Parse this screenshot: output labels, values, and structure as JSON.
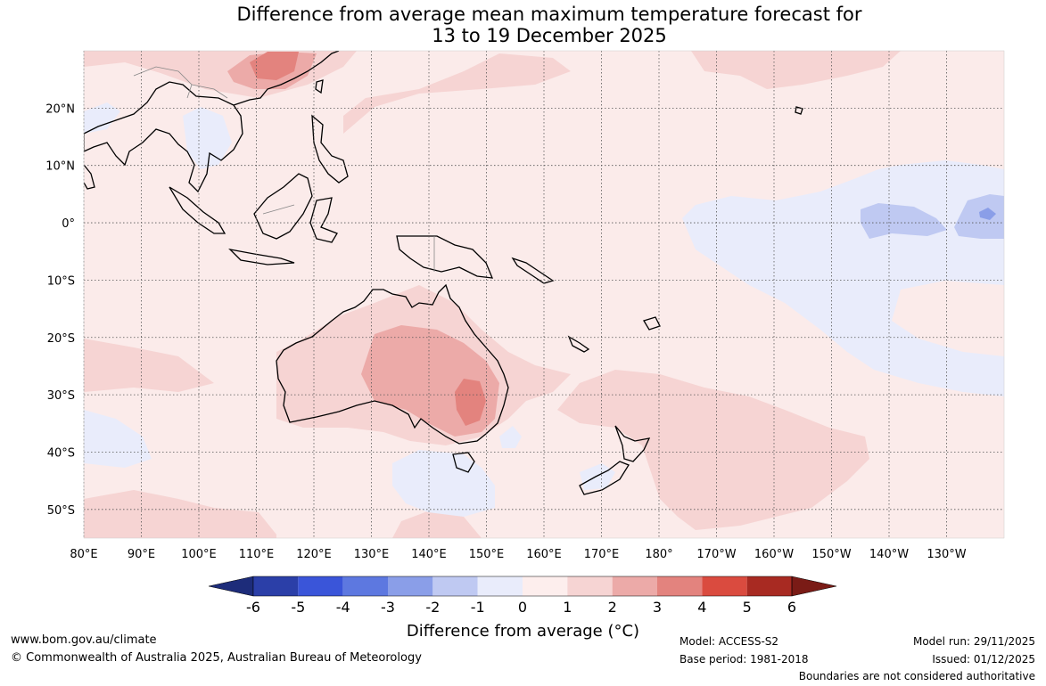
{
  "title": {
    "line1": "Difference from average mean maximum temperature forecast for",
    "line2": "13 to 19 December 2025"
  },
  "axes": {
    "lon_labels": [
      "80°E",
      "90°E",
      "100°E",
      "110°E",
      "120°E",
      "130°E",
      "140°E",
      "150°E",
      "160°E",
      "170°E",
      "180°",
      "170°W",
      "160°W",
      "150°W",
      "140°W",
      "130°W"
    ],
    "lon_values": [
      80,
      90,
      100,
      110,
      120,
      130,
      140,
      150,
      160,
      170,
      180,
      190,
      200,
      210,
      220,
      230
    ],
    "lat_labels": [
      "20°N",
      "10°N",
      "0°",
      "10°S",
      "20°S",
      "30°S",
      "40°S",
      "50°S"
    ],
    "lat_values": [
      20,
      10,
      0,
      -10,
      -20,
      -30,
      -40,
      -50
    ],
    "lon_range": [
      80,
      240
    ],
    "lat_range": [
      -55,
      30
    ]
  },
  "colorbar": {
    "ticks": [
      "-6",
      "-5",
      "-4",
      "-3",
      "-2",
      "-1",
      "0",
      "1",
      "2",
      "3",
      "4",
      "5",
      "6"
    ],
    "colors": [
      "#2b3fa8",
      "#3a55d9",
      "#5d78e0",
      "#8a9ee8",
      "#bfc9f2",
      "#e9ecfb",
      "#fdeeed",
      "#f6d4d3",
      "#ecaaa8",
      "#e3837e",
      "#da4b3f",
      "#a82a22"
    ],
    "extend_low_color": "#1d2c7a",
    "extend_high_color": "#7a1b16",
    "title": "Difference from average (°C)"
  },
  "colors": {
    "background": "#fbebea",
    "grid": "#555555",
    "coast": "#000000"
  },
  "footer": {
    "website": "www.bom.gov.au/climate",
    "copyright": "© Commonwealth of Australia 2025, Australian Bureau of Meteorology",
    "model": "Model: ACCESS-S2",
    "base_period": "Base period: 1981-2018",
    "model_run": "Model run: 29/11/2025",
    "issued": "Issued: 01/12/2025",
    "disclaimer": "Boundaries are not considered authoritative"
  }
}
